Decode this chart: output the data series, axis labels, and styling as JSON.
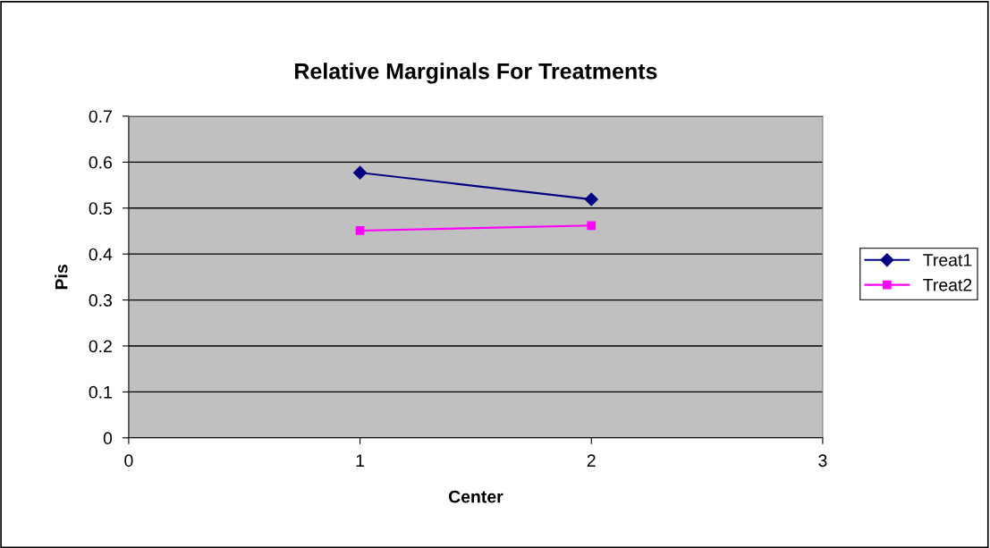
{
  "chart_data": {
    "type": "line",
    "title": "Relative Marginals For Treatments",
    "xlabel": "Center",
    "ylabel": "Pis",
    "x": [
      1,
      2
    ],
    "series": [
      {
        "name": "Treat1",
        "color": "#000080",
        "values": [
          0.577,
          0.519
        ],
        "marker": "diamond"
      },
      {
        "name": "Treat2",
        "color": "#ff00ff",
        "values": [
          0.451,
          0.462
        ],
        "marker": "square"
      }
    ],
    "xlim": [
      0,
      3
    ],
    "xticks": [
      0,
      1,
      2,
      3
    ],
    "ylim": [
      0,
      0.7
    ],
    "yticks": [
      0,
      0.1,
      0.2,
      0.3,
      0.4,
      0.5,
      0.6,
      0.7
    ],
    "grid": "y",
    "legend": "right",
    "line_style": "solid"
  }
}
